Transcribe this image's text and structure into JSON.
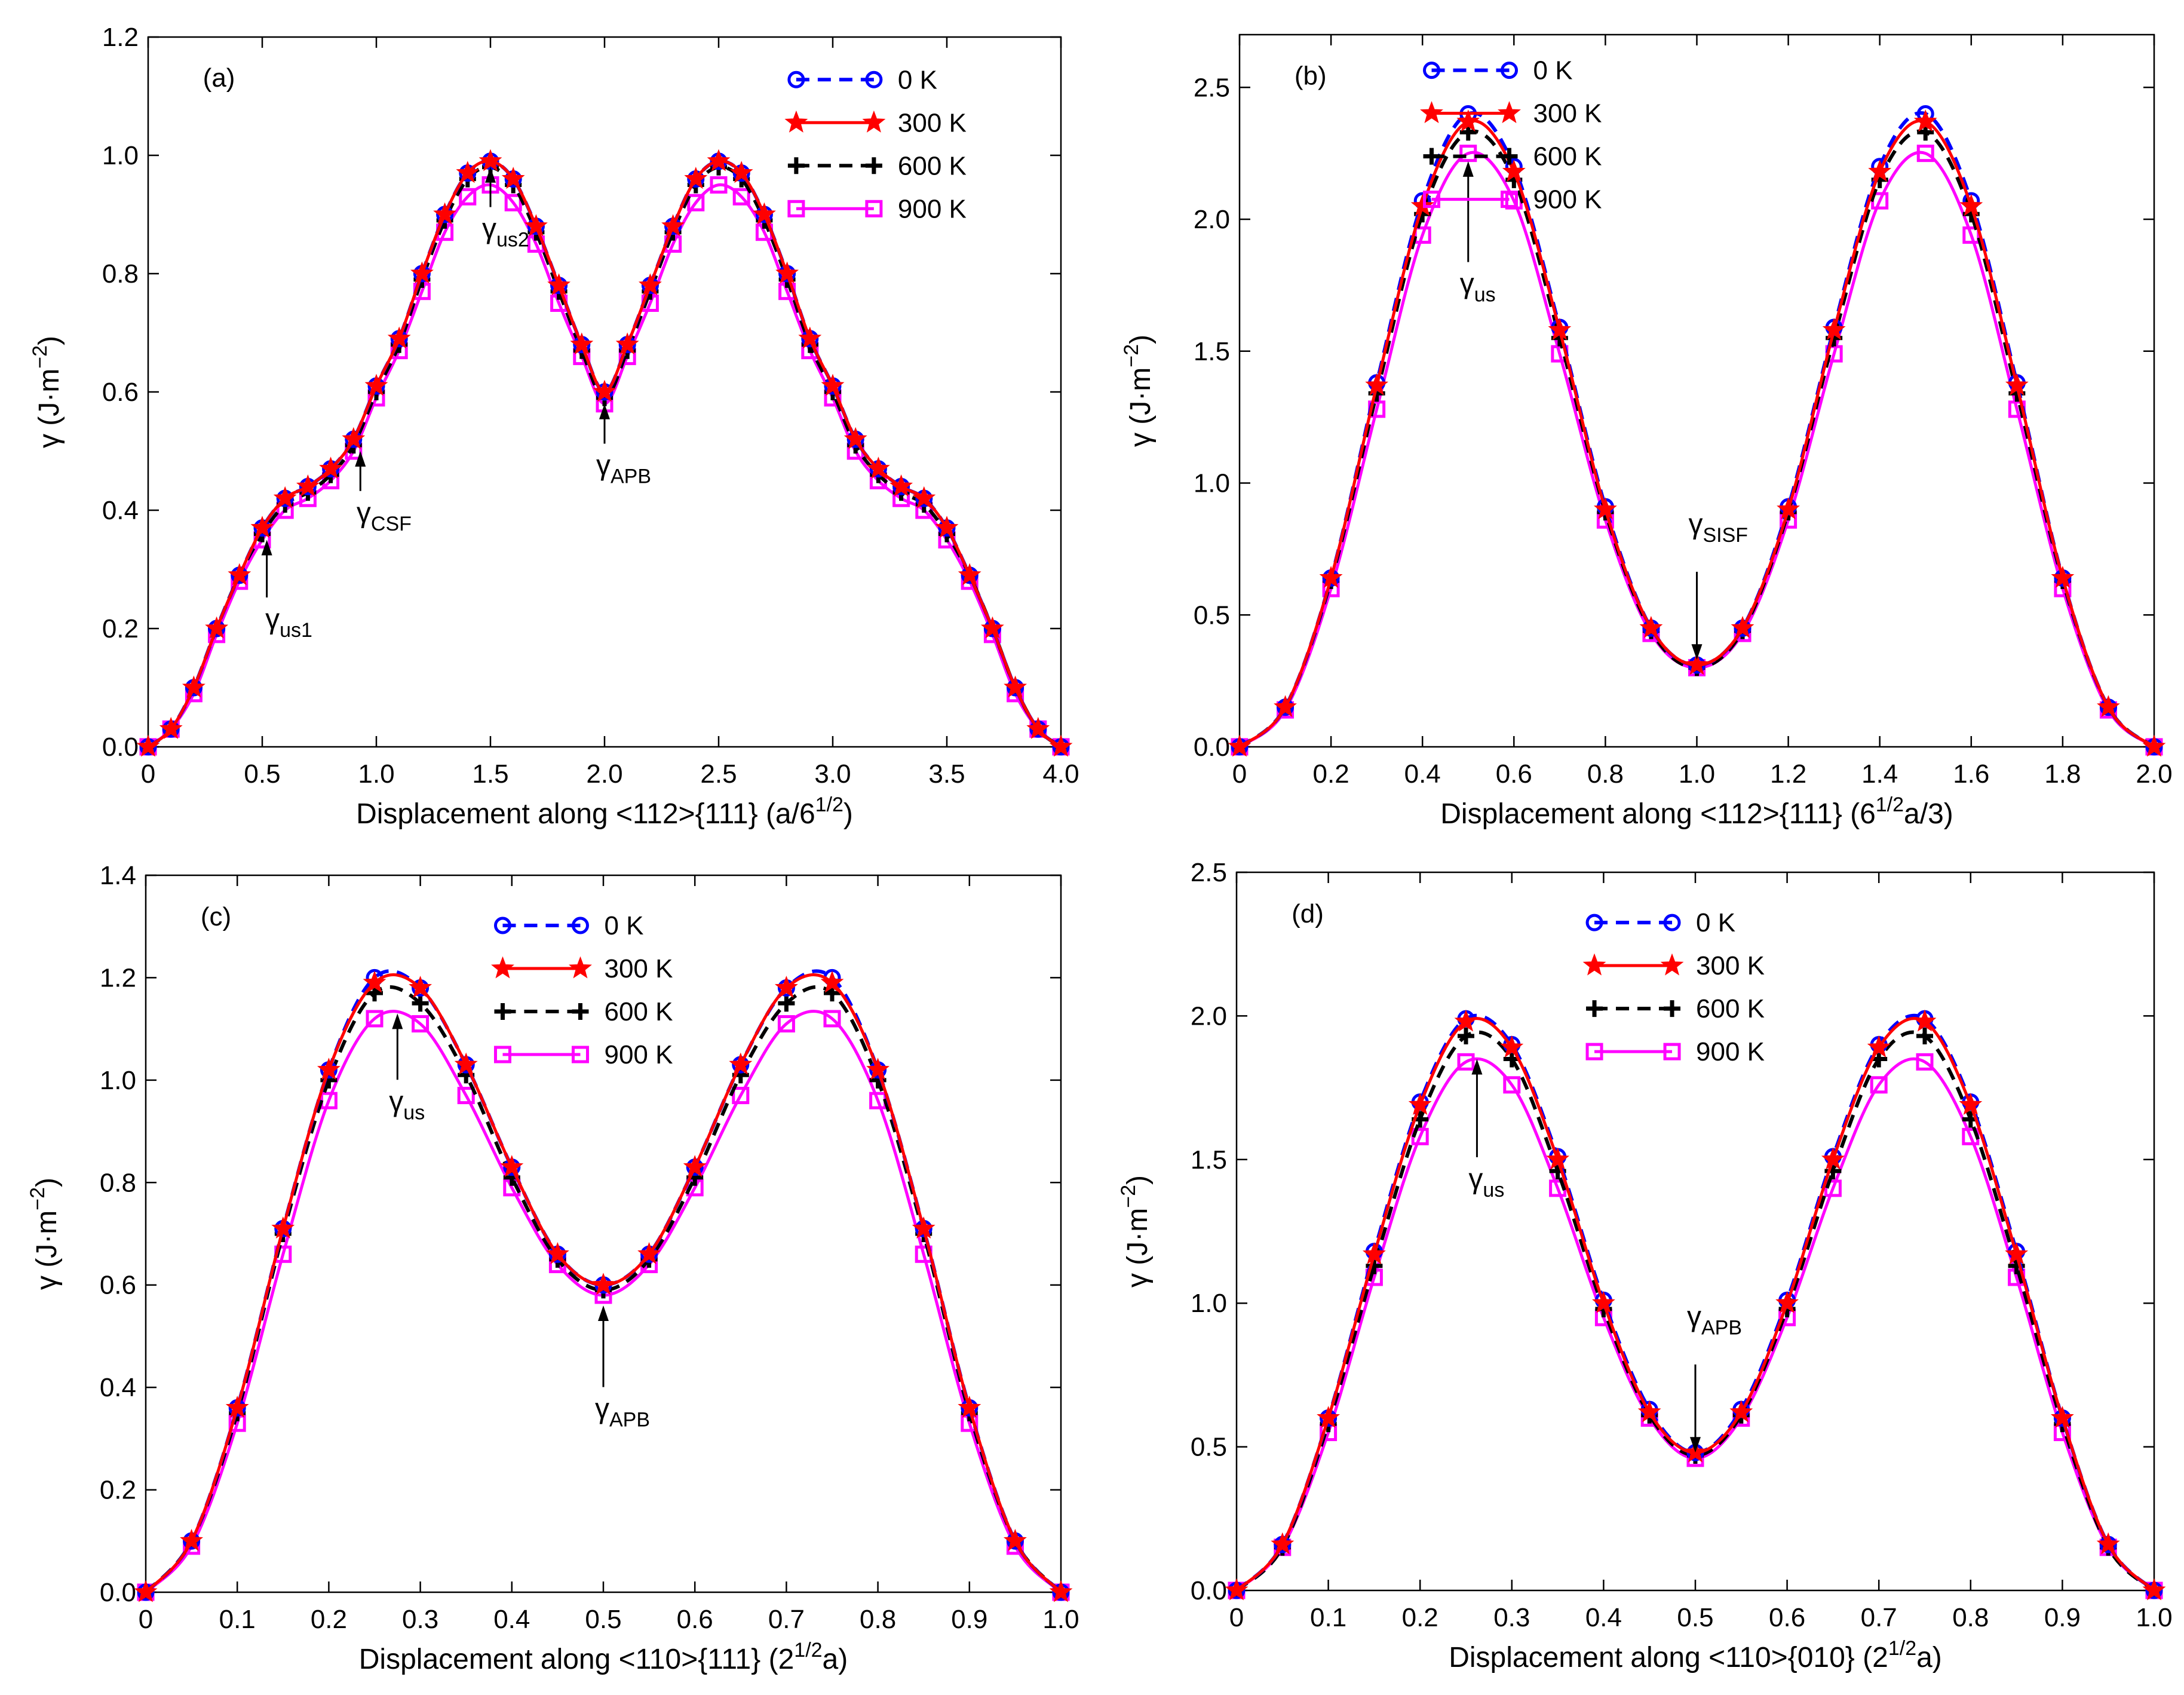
{
  "chart_data": [
    {
      "type": "line",
      "panel_label": "(a)",
      "xlabel": "Displacement along <112>{111} (a/6",
      "xlabel_sup": "1/2",
      "xlabel_tail": ")",
      "ylabel": "γ (J·m",
      "ylabel_sup": "−2",
      "ylabel_tail": ")",
      "xlim": [
        0,
        4.0
      ],
      "ylim": [
        0,
        1.2
      ],
      "xticks": [
        "0",
        "0.5",
        "1.0",
        "1.5",
        "2.0",
        "2.5",
        "3.0",
        "3.5",
        "4.0"
      ],
      "yticks": [
        "0.0",
        "0.2",
        "0.4",
        "0.6",
        "0.8",
        "1.0",
        "1.2"
      ],
      "legend_position": "top-right",
      "x": [
        0,
        0.1,
        0.2,
        0.3,
        0.4,
        0.5,
        0.6,
        0.7,
        0.8,
        0.9,
        1.0,
        1.1,
        1.2,
        1.3,
        1.4,
        1.5,
        1.6,
        1.7,
        1.8,
        1.9,
        2.0,
        2.1,
        2.2,
        2.3,
        2.4,
        2.5,
        2.6,
        2.7,
        2.8,
        2.9,
        3.0,
        3.1,
        3.2,
        3.3,
        3.4,
        3.5,
        3.6,
        3.7,
        3.8,
        3.9,
        4.0
      ],
      "series": [
        {
          "name": "0 K",
          "values": [
            0,
            0.03,
            0.1,
            0.2,
            0.29,
            0.37,
            0.42,
            0.44,
            0.47,
            0.52,
            0.61,
            0.69,
            0.8,
            0.9,
            0.97,
            0.99,
            0.96,
            0.88,
            0.78,
            0.68,
            0.6,
            0.68,
            0.78,
            0.88,
            0.96,
            0.99,
            0.97,
            0.9,
            0.8,
            0.69,
            0.61,
            0.52,
            0.47,
            0.44,
            0.42,
            0.37,
            0.29,
            0.2,
            0.1,
            0.03,
            0
          ]
        },
        {
          "name": "300 K",
          "values": [
            0,
            0.03,
            0.1,
            0.2,
            0.29,
            0.37,
            0.42,
            0.44,
            0.47,
            0.52,
            0.61,
            0.69,
            0.8,
            0.9,
            0.97,
            0.99,
            0.96,
            0.88,
            0.78,
            0.68,
            0.6,
            0.68,
            0.78,
            0.88,
            0.96,
            0.99,
            0.97,
            0.9,
            0.8,
            0.69,
            0.61,
            0.52,
            0.47,
            0.44,
            0.42,
            0.37,
            0.29,
            0.2,
            0.1,
            0.03,
            0
          ]
        },
        {
          "name": "600 K",
          "values": [
            0,
            0.03,
            0.1,
            0.2,
            0.29,
            0.36,
            0.41,
            0.43,
            0.46,
            0.51,
            0.6,
            0.68,
            0.79,
            0.89,
            0.96,
            0.98,
            0.95,
            0.87,
            0.77,
            0.67,
            0.59,
            0.67,
            0.77,
            0.87,
            0.95,
            0.98,
            0.96,
            0.89,
            0.79,
            0.68,
            0.6,
            0.51,
            0.46,
            0.43,
            0.41,
            0.36,
            0.29,
            0.2,
            0.1,
            0.03,
            0
          ]
        },
        {
          "name": "900 K",
          "values": [
            0,
            0.03,
            0.09,
            0.19,
            0.28,
            0.35,
            0.4,
            0.42,
            0.45,
            0.5,
            0.59,
            0.67,
            0.77,
            0.87,
            0.93,
            0.95,
            0.92,
            0.85,
            0.75,
            0.66,
            0.58,
            0.66,
            0.75,
            0.85,
            0.92,
            0.95,
            0.93,
            0.87,
            0.77,
            0.67,
            0.59,
            0.5,
            0.45,
            0.42,
            0.4,
            0.35,
            0.28,
            0.19,
            0.09,
            0.03,
            0
          ]
        }
      ],
      "annotations": [
        {
          "text": "γ",
          "sub": "us1",
          "x": 0.52,
          "y": 0.35,
          "text_x": 0.55,
          "text_y": 0.2
        },
        {
          "text": "γ",
          "sub": "CSF",
          "x": 0.93,
          "y": 0.5,
          "text_x": 0.95,
          "text_y": 0.38
        },
        {
          "text": "γ",
          "sub": "us2",
          "x": 1.5,
          "y": 0.98,
          "text_x": 1.5,
          "text_y": 0.86
        },
        {
          "text": "γ",
          "sub": "APB",
          "x": 2.0,
          "y": 0.58,
          "text_x": 2.0,
          "text_y": 0.46
        }
      ]
    },
    {
      "type": "line",
      "panel_label": "(b)",
      "xlabel": "Displacement along <112>{111} (6",
      "xlabel_sup": "1/2",
      "xlabel_tail": "a/3)",
      "ylabel": "γ (J·m",
      "ylabel_sup": "−2",
      "ylabel_tail": ")",
      "xlim": [
        0,
        2.0
      ],
      "ylim": [
        0,
        2.7
      ],
      "xticks": [
        "0",
        "0.2",
        "0.4",
        "0.6",
        "0.8",
        "1.0",
        "1.2",
        "1.4",
        "1.6",
        "1.8",
        "2.0"
      ],
      "yticks": [
        "0.0",
        "0.5",
        "1.0",
        "1.5",
        "2.0",
        "2.5"
      ],
      "legend_position": "top-right",
      "x": [
        0,
        0.1,
        0.2,
        0.3,
        0.4,
        0.5,
        0.6,
        0.7,
        0.8,
        0.9,
        1.0,
        1.1,
        1.2,
        1.3,
        1.4,
        1.5,
        1.6,
        1.7,
        1.8,
        1.9,
        2.0
      ],
      "series": [
        {
          "name": "0 K",
          "values": [
            0,
            0.15,
            0.64,
            1.38,
            2.07,
            2.4,
            2.2,
            1.59,
            0.91,
            0.45,
            0.31,
            0.45,
            0.91,
            1.59,
            2.2,
            2.4,
            2.07,
            1.38,
            0.64,
            0.15,
            0
          ]
        },
        {
          "name": "300 K",
          "values": [
            0,
            0.15,
            0.64,
            1.37,
            2.05,
            2.37,
            2.18,
            1.58,
            0.9,
            0.45,
            0.31,
            0.45,
            0.9,
            1.58,
            2.18,
            2.37,
            2.05,
            1.37,
            0.64,
            0.15,
            0
          ]
        },
        {
          "name": "600 K",
          "values": [
            0,
            0.15,
            0.63,
            1.34,
            2.02,
            2.33,
            2.15,
            1.55,
            0.89,
            0.44,
            0.3,
            0.44,
            0.89,
            1.55,
            2.15,
            2.33,
            2.02,
            1.34,
            0.63,
            0.15,
            0
          ]
        },
        {
          "name": "900 K",
          "values": [
            0,
            0.14,
            0.6,
            1.28,
            1.94,
            2.25,
            2.07,
            1.49,
            0.86,
            0.43,
            0.3,
            0.43,
            0.86,
            1.49,
            2.07,
            2.25,
            1.94,
            1.28,
            0.6,
            0.14,
            0
          ]
        }
      ],
      "annotations": [
        {
          "text": "γ",
          "sub": "us",
          "x": 0.5,
          "y": 2.22,
          "text_x": 0.5,
          "text_y": 1.72
        },
        {
          "text": "γ",
          "sub": "SISF",
          "x": 1.0,
          "y": 0.33,
          "text_x": 1.0,
          "text_y": 0.7
        }
      ]
    },
    {
      "type": "line",
      "panel_label": "(c)",
      "xlabel": "Displacement along <110>{111} (2",
      "xlabel_sup": "1/2",
      "xlabel_tail": "a)",
      "ylabel": "γ (J·m",
      "ylabel_sup": "−2",
      "ylabel_tail": ")",
      "xlim": [
        0,
        1.0
      ],
      "ylim": [
        0,
        1.4
      ],
      "xticks": [
        "0",
        "0.1",
        "0.2",
        "0.3",
        "0.4",
        "0.5",
        "0.6",
        "0.7",
        "0.8",
        "0.9",
        "1.0"
      ],
      "yticks": [
        "0.0",
        "0.2",
        "0.4",
        "0.6",
        "0.8",
        "1.0",
        "1.2",
        "1.4"
      ],
      "legend_position": "top-center",
      "x": [
        0,
        0.05,
        0.1,
        0.15,
        0.2,
        0.25,
        0.3,
        0.35,
        0.4,
        0.45,
        0.5,
        0.55,
        0.6,
        0.65,
        0.7,
        0.75,
        0.8,
        0.85,
        0.9,
        0.95,
        1.0
      ],
      "series": [
        {
          "name": "0 K",
          "values": [
            0,
            0.1,
            0.36,
            0.71,
            1.02,
            1.2,
            1.18,
            1.03,
            0.83,
            0.66,
            0.6,
            0.66,
            0.83,
            1.03,
            1.18,
            1.2,
            1.02,
            0.71,
            0.36,
            0.1,
            0
          ]
        },
        {
          "name": "300 K",
          "values": [
            0,
            0.1,
            0.36,
            0.71,
            1.02,
            1.19,
            1.18,
            1.03,
            0.83,
            0.66,
            0.6,
            0.66,
            0.83,
            1.03,
            1.18,
            1.19,
            1.02,
            0.71,
            0.36,
            0.1,
            0
          ]
        },
        {
          "name": "600 K",
          "values": [
            0,
            0.1,
            0.35,
            0.7,
            1.0,
            1.17,
            1.15,
            1.01,
            0.81,
            0.65,
            0.59,
            0.65,
            0.81,
            1.01,
            1.15,
            1.17,
            1.0,
            0.7,
            0.35,
            0.1,
            0
          ]
        },
        {
          "name": "900 K",
          "values": [
            0,
            0.09,
            0.33,
            0.66,
            0.96,
            1.12,
            1.11,
            0.97,
            0.79,
            0.64,
            0.58,
            0.64,
            0.79,
            0.97,
            1.11,
            1.12,
            0.96,
            0.66,
            0.33,
            0.09,
            0
          ]
        }
      ],
      "annotations": [
        {
          "text": "γ",
          "sub": "us",
          "x": 0.275,
          "y": 1.13,
          "text_x": 0.275,
          "text_y": 0.94
        },
        {
          "text": "γ",
          "sub": "APB",
          "x": 0.5,
          "y": 0.56,
          "text_x": 0.5,
          "text_y": 0.34
        }
      ]
    },
    {
      "type": "line",
      "panel_label": "(d)",
      "xlabel": "Displacement along <110>{010} (2",
      "xlabel_sup": "1/2",
      "xlabel_tail": "a)",
      "ylabel": "γ (J·m",
      "ylabel_sup": "−2",
      "ylabel_tail": ")",
      "xlim": [
        0,
        1.0
      ],
      "ylim": [
        0,
        2.5
      ],
      "xticks": [
        "0",
        "0.1",
        "0.2",
        "0.3",
        "0.4",
        "0.5",
        "0.6",
        "0.7",
        "0.8",
        "0.9",
        "1.0"
      ],
      "yticks": [
        "0.0",
        "0.5",
        "1.0",
        "1.5",
        "2.0",
        "2.5"
      ],
      "legend_position": "top-center",
      "x": [
        0,
        0.05,
        0.1,
        0.15,
        0.2,
        0.25,
        0.3,
        0.35,
        0.4,
        0.45,
        0.5,
        0.55,
        0.6,
        0.65,
        0.7,
        0.75,
        0.8,
        0.85,
        0.9,
        0.95,
        1.0
      ],
      "series": [
        {
          "name": "0 K",
          "values": [
            0,
            0.16,
            0.6,
            1.18,
            1.7,
            1.99,
            1.9,
            1.51,
            1.01,
            0.63,
            0.48,
            0.63,
            1.01,
            1.51,
            1.9,
            1.99,
            1.7,
            1.18,
            0.6,
            0.16,
            0
          ]
        },
        {
          "name": "300 K",
          "values": [
            0,
            0.16,
            0.6,
            1.17,
            1.69,
            1.98,
            1.89,
            1.5,
            1.0,
            0.62,
            0.48,
            0.62,
            1.0,
            1.5,
            1.89,
            1.98,
            1.69,
            1.17,
            0.6,
            0.16,
            0
          ]
        },
        {
          "name": "600 K",
          "values": [
            0,
            0.15,
            0.58,
            1.13,
            1.64,
            1.93,
            1.85,
            1.46,
            0.98,
            0.61,
            0.47,
            0.61,
            0.98,
            1.46,
            1.85,
            1.93,
            1.64,
            1.13,
            0.58,
            0.15,
            0
          ]
        },
        {
          "name": "900 K",
          "values": [
            0,
            0.15,
            0.55,
            1.09,
            1.58,
            1.84,
            1.76,
            1.4,
            0.95,
            0.6,
            0.46,
            0.6,
            0.95,
            1.4,
            1.76,
            1.84,
            1.58,
            1.09,
            0.55,
            0.15,
            0
          ]
        }
      ],
      "annotations": [
        {
          "text": "γ",
          "sub": "us",
          "x": 0.262,
          "y": 1.85,
          "text_x": 0.262,
          "text_y": 1.4
        },
        {
          "text": "γ",
          "sub": "APB",
          "x": 0.5,
          "y": 0.48,
          "text_x": 0.5,
          "text_y": 0.82
        }
      ]
    }
  ],
  "series_styles": [
    {
      "name": "0 K",
      "color": "#0000ff",
      "dash": "dashed",
      "marker": "circle"
    },
    {
      "name": "300 K",
      "color": "#ff0000",
      "dash": "solid",
      "marker": "star"
    },
    {
      "name": "600 K",
      "color": "#000000",
      "dash": "dashed",
      "marker": "plus"
    },
    {
      "name": "900 K",
      "color": "#ff00ff",
      "dash": "solid",
      "marker": "square"
    }
  ]
}
